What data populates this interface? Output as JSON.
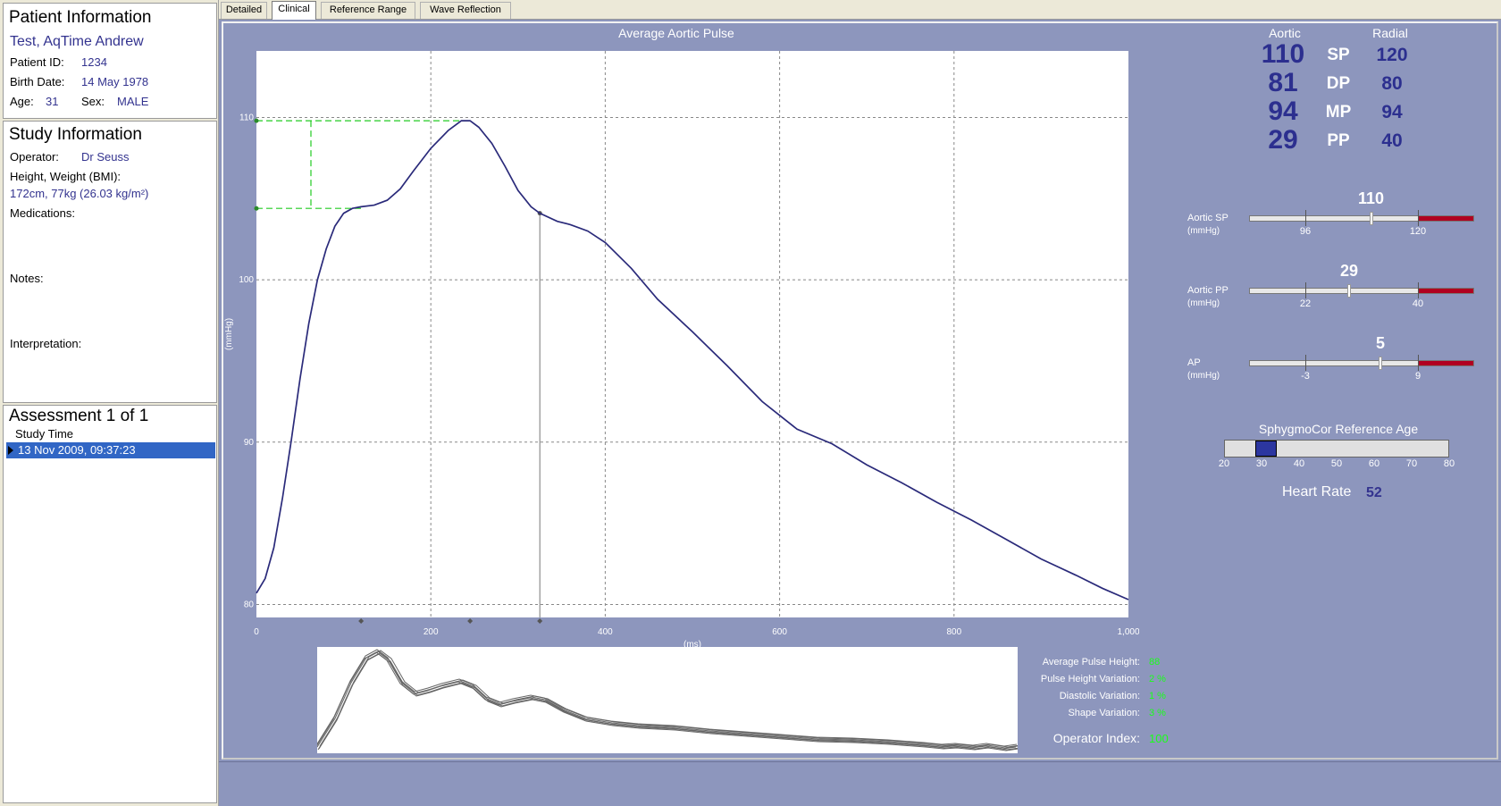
{
  "patient": {
    "title": "Patient Information",
    "name": "Test, AqTime Andrew",
    "id_label": "Patient ID:",
    "id_value": "1234",
    "birth_label": "Birth Date:",
    "birth_value": "14 May 1978",
    "age_label": "Age:",
    "age_value": "31",
    "sex_label": "Sex:",
    "sex_value": "MALE"
  },
  "study": {
    "title": "Study Information",
    "operator_label": "Operator:",
    "operator_value": "Dr Seuss",
    "hw_label": "Height, Weight (BMI):",
    "hw_value": "172cm, 77kg (26.03 kg/m²)",
    "meds_label": "Medications:",
    "notes_label": "Notes:",
    "interp_label": "Interpretation:"
  },
  "assessment": {
    "title": "Assessment 1 of 1",
    "column": "Study Time",
    "rows": [
      "13 Nov 2009, 09:37:23"
    ]
  },
  "tabs": [
    {
      "label": "Detailed",
      "active": false
    },
    {
      "label": "Clinical",
      "active": true
    },
    {
      "label": "Reference Range",
      "active": false
    },
    {
      "label": "Wave Reflection",
      "active": false
    }
  ],
  "chart_data": {
    "type": "line",
    "title": "Average Aortic Pulse",
    "xlabel": "(ms)",
    "ylabel": "(mmHg)",
    "xlim": [
      0,
      1000
    ],
    "ylim": [
      79.2,
      114.1
    ],
    "grid": true,
    "x_ticks": [
      0,
      200,
      400,
      600,
      800,
      1000
    ],
    "x_tick_labels": [
      "0",
      "200",
      "400",
      "600",
      "800",
      "1,000"
    ],
    "y_ticks": [
      80,
      90,
      100,
      110
    ],
    "y_tick_labels": [
      "80",
      "90",
      "100",
      "110"
    ],
    "series": [
      {
        "x": [
          0,
          10,
          20,
          30,
          40,
          50,
          60,
          70,
          80,
          90,
          100,
          110,
          120,
          135,
          150,
          165,
          180,
          200,
          220,
          235,
          245,
          255,
          270,
          285,
          300,
          315,
          325,
          345,
          360,
          380,
          400,
          430,
          460,
          500,
          540,
          580,
          620,
          660,
          700,
          740,
          780,
          820,
          860,
          900,
          940,
          970,
          1000
        ],
        "y": [
          80.7,
          81.6,
          83.5,
          86.6,
          90.1,
          93.9,
          97.3,
          100.0,
          101.9,
          103.3,
          104.1,
          104.4,
          104.5,
          104.6,
          104.9,
          105.6,
          106.7,
          108.1,
          109.2,
          109.8,
          109.8,
          109.4,
          108.4,
          107.0,
          105.5,
          104.5,
          104.1,
          103.6,
          103.4,
          103.0,
          102.3,
          100.7,
          98.8,
          96.8,
          94.7,
          92.5,
          90.8,
          89.9,
          88.6,
          87.5,
          86.3,
          85.2,
          84.0,
          82.8,
          81.8,
          81.0,
          80.3
        ]
      }
    ],
    "augmentation": {
      "shoulder_y": 104.4,
      "peak_y": 109.8,
      "peak_x": 245,
      "marker_x": 325,
      "baseline_markers_x": [
        120,
        245,
        325
      ]
    }
  },
  "thumbnail": {
    "description_free": true,
    "traces": 6
  },
  "bp": {
    "aortic_label": "Aortic",
    "radial_label": "Radial",
    "rows": [
      {
        "label": "SP",
        "aortic": "110",
        "radial": "120"
      },
      {
        "label": "DP",
        "aortic": "81",
        "radial": "80"
      },
      {
        "label": "MP",
        "aortic": "94",
        "radial": "94"
      },
      {
        "label": "PP",
        "aortic": "29",
        "radial": "40"
      }
    ]
  },
  "gauges": [
    {
      "label": "Aortic SP",
      "unit": "(mmHg)",
      "value": 110,
      "value_text": "110",
      "tick1": 96,
      "tick1_text": "96",
      "tick2": 120,
      "tick2_text": "120",
      "red_start": 120
    },
    {
      "label": "Aortic PP",
      "unit": "(mmHg)",
      "value": 29,
      "value_text": "29",
      "tick1": 22,
      "tick1_text": "22",
      "tick2": 40,
      "tick2_text": "40",
      "red_start": 40
    },
    {
      "label": "AP",
      "unit": "(mmHg)",
      "value": 5,
      "value_text": "5",
      "tick1": -3,
      "tick1_text": "-3",
      "tick2": 9,
      "tick2_text": "9",
      "red_start": 9
    }
  ],
  "ref_age": {
    "title": "SphygmoCor Reference Age",
    "min": 20,
    "max": 80,
    "value": 31,
    "ticks": [
      "20",
      "30",
      "40",
      "50",
      "60",
      "70",
      "80"
    ]
  },
  "heart_rate": {
    "label": "Heart Rate",
    "value": "52"
  },
  "quality": {
    "rows": [
      {
        "label": "Average Pulse Height:",
        "value": "88"
      },
      {
        "label": "Pulse Height Variation:",
        "value": "2 %"
      },
      {
        "label": "Diastolic Variation:",
        "value": "1 %"
      },
      {
        "label": "Shape Variation:",
        "value": "3 %"
      }
    ],
    "operator_label": "Operator Index:",
    "operator_value": "100"
  },
  "colors": {
    "accent": "#33338f",
    "panel_bg": "#8d96bd",
    "selection": "#3166c5",
    "quality_ok": "#1aff1a",
    "gauge_red": "#b00020"
  }
}
